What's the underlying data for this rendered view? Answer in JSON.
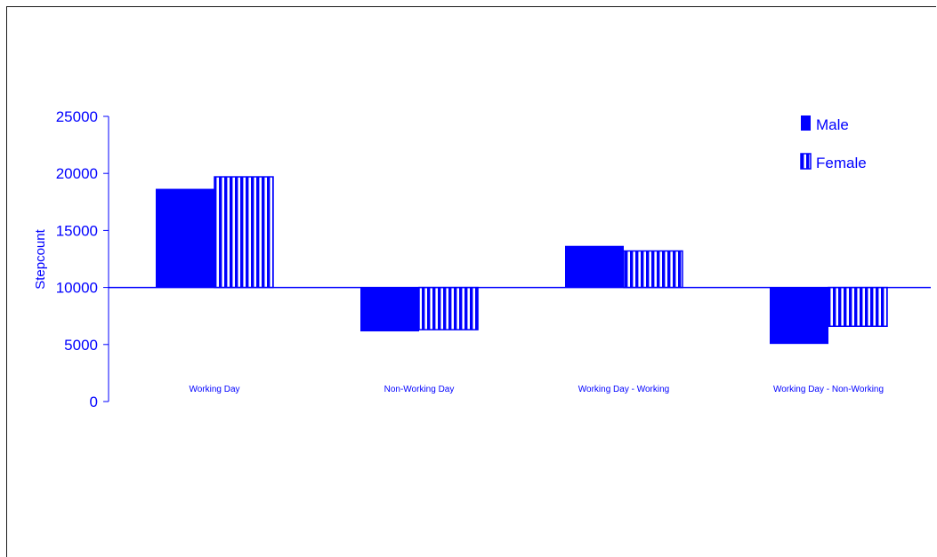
{
  "colors": {
    "series": "#0000ff",
    "frame": "#1a1a1a",
    "background": "#ffffff"
  },
  "chart_data": {
    "type": "bar",
    "title": "",
    "xlabel": "",
    "ylabel": "Stepcount",
    "ylim": [
      0,
      25000
    ],
    "yticks": [
      0,
      5000,
      10000,
      15000,
      20000,
      25000
    ],
    "baseline": 10000,
    "grid": false,
    "legend_position": "top-right",
    "categories": [
      "Working Day",
      "Non-Working Day",
      "Working Day - Working",
      "Working Day - Non-Working"
    ],
    "series": [
      {
        "name": "Male",
        "fill": "solid",
        "values": [
          18650,
          6150,
          13650,
          5050
        ]
      },
      {
        "name": "Female",
        "fill": "vertical-stripes",
        "values": [
          19700,
          6300,
          13200,
          6600
        ]
      }
    ]
  }
}
